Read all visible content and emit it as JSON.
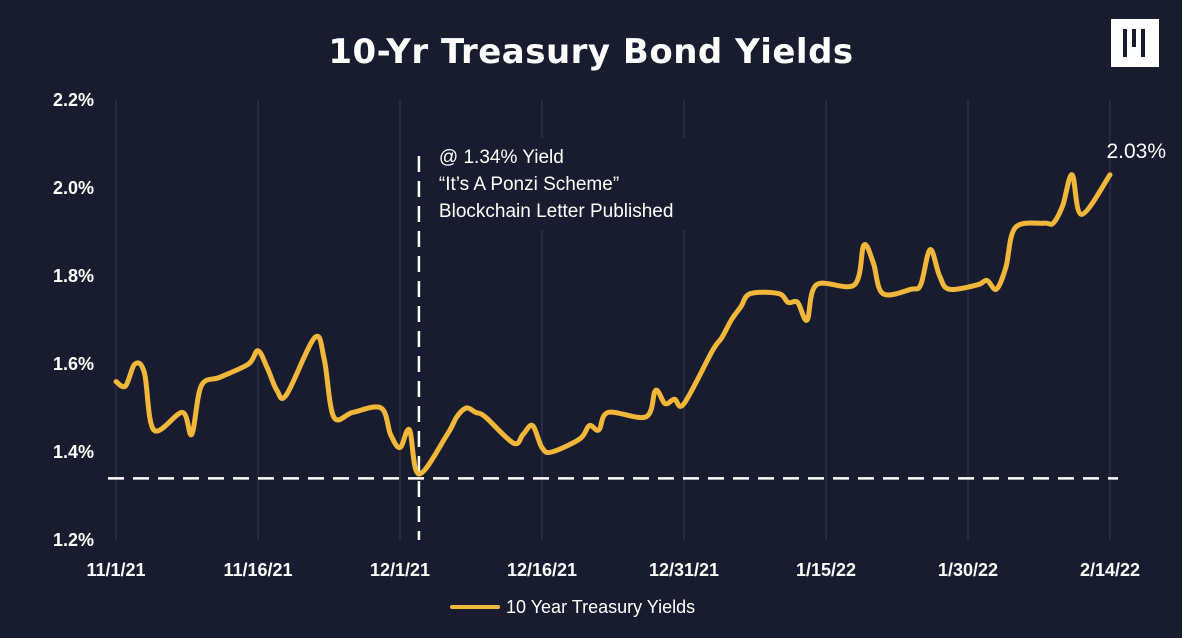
{
  "chart_data": {
    "type": "line",
    "title": "10-Yr Treasury Bond Yields",
    "xlabel": "",
    "ylabel": "",
    "y_ticks": [
      "1.2%",
      "1.4%",
      "1.6%",
      "1.8%",
      "2.0%",
      "2.2%"
    ],
    "ylim": [
      1.2,
      2.2
    ],
    "x_ticks": [
      "11/1/21",
      "11/16/21",
      "12/1/21",
      "12/16/21",
      "12/31/21",
      "1/15/22",
      "1/30/22",
      "2/14/22"
    ],
    "x_tick_dates": [
      "2021-11-01",
      "2021-11-16",
      "2021-12-01",
      "2021-12-16",
      "2021-12-31",
      "2022-01-15",
      "2022-01-30",
      "2022-02-14"
    ],
    "grid": "vertical",
    "legend_position": "bottom",
    "series": [
      {
        "name": "10 Year Treasury Yields",
        "color": "#f0b73a",
        "x": [
          "2021-11-01",
          "2021-11-02",
          "2021-11-03",
          "2021-11-04",
          "2021-11-05",
          "2021-11-08",
          "2021-11-09",
          "2021-11-10",
          "2021-11-12",
          "2021-11-15",
          "2021-11-16",
          "2021-11-17",
          "2021-11-18",
          "2021-11-19",
          "2021-11-22",
          "2021-11-23",
          "2021-11-24",
          "2021-11-26",
          "2021-11-29",
          "2021-11-30",
          "2021-12-01",
          "2021-12-02",
          "2021-12-03",
          "2021-12-06",
          "2021-12-07",
          "2021-12-08",
          "2021-12-09",
          "2021-12-10",
          "2021-12-13",
          "2021-12-14",
          "2021-12-15",
          "2021-12-16",
          "2021-12-17",
          "2021-12-20",
          "2021-12-21",
          "2021-12-22",
          "2021-12-23",
          "2021-12-27",
          "2021-12-28",
          "2021-12-29",
          "2021-12-30",
          "2021-12-31",
          "2022-01-03",
          "2022-01-04",
          "2022-01-05",
          "2022-01-06",
          "2022-01-07",
          "2022-01-10",
          "2022-01-11",
          "2022-01-12",
          "2022-01-13",
          "2022-01-14",
          "2022-01-18",
          "2022-01-19",
          "2022-01-20",
          "2022-01-21",
          "2022-01-24",
          "2022-01-25",
          "2022-01-26",
          "2022-01-27",
          "2022-01-28",
          "2022-01-31",
          "2022-02-01",
          "2022-02-02",
          "2022-02-03",
          "2022-02-04",
          "2022-02-07",
          "2022-02-08",
          "2022-02-09",
          "2022-02-10",
          "2022-02-11",
          "2022-02-14"
        ],
        "values": [
          1.56,
          1.55,
          1.6,
          1.58,
          1.45,
          1.49,
          1.44,
          1.55,
          1.57,
          1.6,
          1.63,
          1.59,
          1.54,
          1.53,
          1.66,
          1.61,
          1.48,
          1.49,
          1.5,
          1.44,
          1.41,
          1.45,
          1.35,
          1.44,
          1.48,
          1.5,
          1.49,
          1.48,
          1.42,
          1.44,
          1.46,
          1.41,
          1.4,
          1.43,
          1.46,
          1.45,
          1.49,
          1.48,
          1.54,
          1.51,
          1.52,
          1.51,
          1.63,
          1.66,
          1.7,
          1.73,
          1.76,
          1.76,
          1.74,
          1.74,
          1.7,
          1.78,
          1.78,
          1.87,
          1.83,
          1.76,
          1.77,
          1.78,
          1.86,
          1.8,
          1.77,
          1.78,
          1.79,
          1.77,
          1.82,
          1.91,
          1.92,
          1.92,
          1.96,
          2.03,
          1.94,
          2.03
        ]
      }
    ],
    "reference_lines": [
      {
        "axis": "y",
        "value": 1.34
      },
      {
        "axis": "x",
        "value": "2021-12-03"
      }
    ],
    "annotation": {
      "lines": [
        "@ 1.34% Yield",
        "“It’s A Ponzi Scheme”",
        "Blockchain Letter Published"
      ]
    },
    "end_label": "2.03%"
  },
  "logo": {
    "icon": "brand-logo-icon"
  }
}
